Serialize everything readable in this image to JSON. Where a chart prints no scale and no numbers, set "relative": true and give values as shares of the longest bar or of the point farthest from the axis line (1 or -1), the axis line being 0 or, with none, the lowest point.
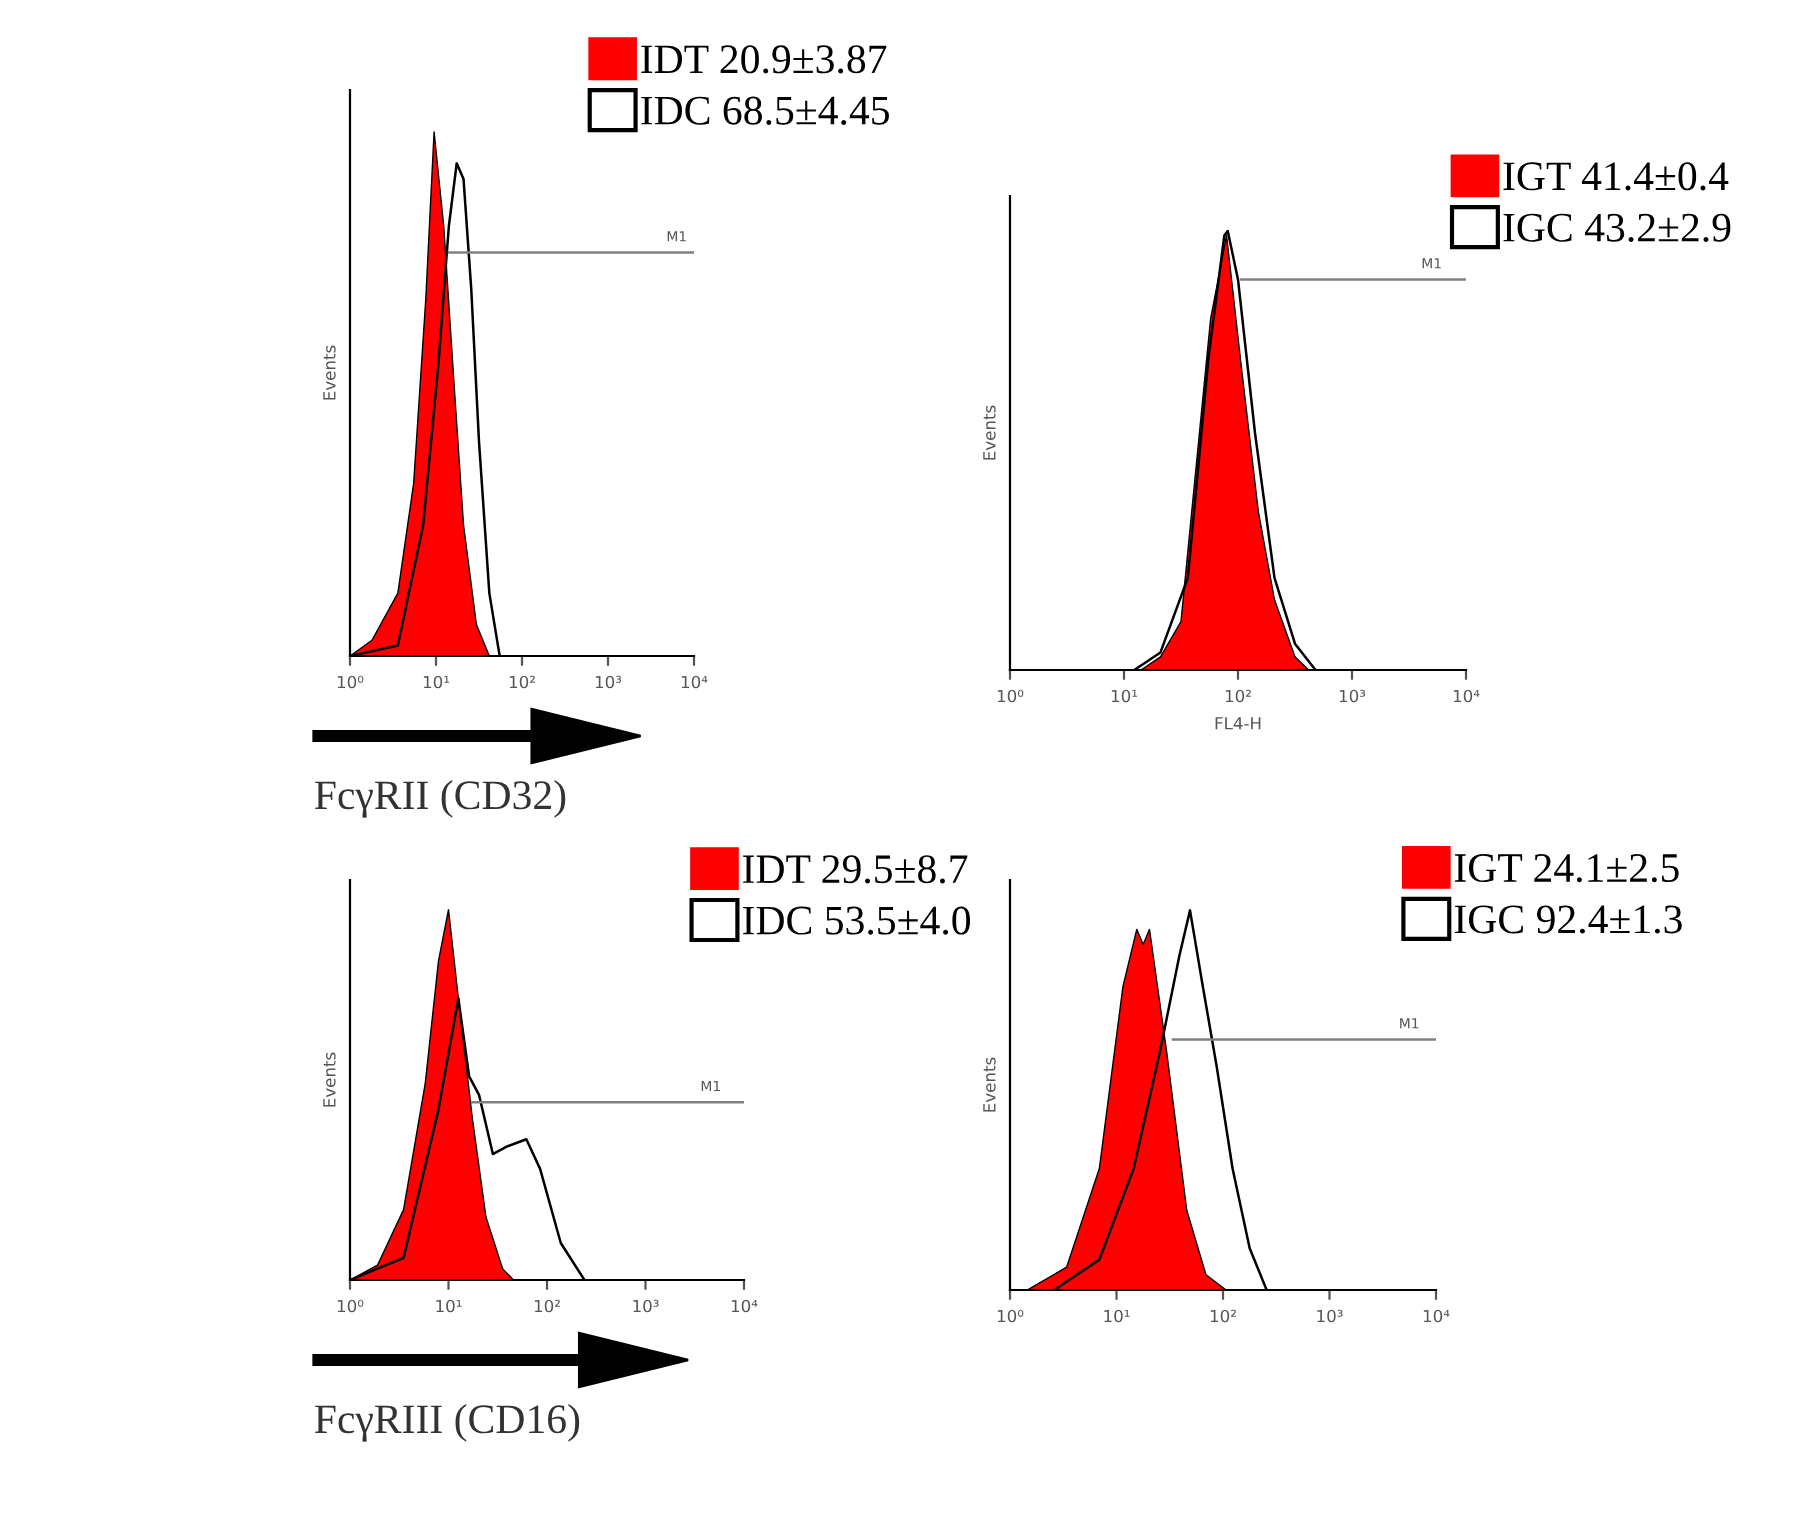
{
  "chart_data": [
    {
      "type": "area",
      "relative": true,
      "log": "x",
      "xlim": [
        1,
        10000
      ],
      "xticks": [
        {
          "value": 1,
          "label": "10⁰"
        },
        {
          "value": 10,
          "label": "10¹"
        },
        {
          "value": 100,
          "label": "10²"
        },
        {
          "value": 1000,
          "label": "10³"
        },
        {
          "value": 10000,
          "label": "10⁴"
        }
      ],
      "ylabel": "Events",
      "legend": "top right",
      "grid": false,
      "series": [
        {
          "name": "IDT 20.9±3.87",
          "color": "#ff0000",
          "x": [
            1,
            1.8,
            3.6,
            5.5,
            7.6,
            9.5,
            12.3,
            16.2,
            20.9,
            29.5,
            41.7
          ],
          "values": [
            0,
            0.03,
            0.12,
            0.33,
            0.68,
            1,
            0.82,
            0.52,
            0.25,
            0.06,
            0
          ]
        },
        {
          "name": "IDC 68.5±4.45",
          "type": "line",
          "color": "#000000",
          "x": [
            1,
            3.6,
            7.1,
            10.7,
            14.1,
            17.4,
            20.9,
            25.7,
            31.6,
            41.7,
            55
          ],
          "values": [
            0,
            0.02,
            0.25,
            0.56,
            0.82,
            0.94,
            0.91,
            0.7,
            0.41,
            0.12,
            0
          ]
        },
        {
          "type": "line",
          "color": "#808080",
          "x": [
            14.1,
            10000
          ],
          "values": [
            0.77,
            0.77
          ]
        }
      ],
      "annotations": [
        {
          "text": "M1",
          "x": 6300,
          "y": 0.77
        },
        "FcγRII (CD32)"
      ]
    },
    {
      "type": "area",
      "relative": true,
      "log": "x",
      "xlim": [
        1,
        10000
      ],
      "xticks": [
        {
          "value": 1,
          "label": "10⁰"
        },
        {
          "value": 10,
          "label": "10¹"
        },
        {
          "value": 100,
          "label": "10²"
        },
        {
          "value": 1000,
          "label": "10³"
        },
        {
          "value": 10000,
          "label": "10⁴"
        }
      ],
      "ylabel": "Events",
      "xlabel": "FL4-H",
      "legend": "top right",
      "grid": false,
      "series": [
        {
          "name": "IGT 41.4±0.4",
          "color": "#ff0000",
          "x": [
            14.1,
            20.9,
            31.6,
            41.7,
            57.5,
            79.4,
            107,
            151,
            209,
            316,
            417
          ],
          "values": [
            0,
            0.03,
            0.11,
            0.43,
            0.8,
            0.99,
            0.69,
            0.36,
            0.16,
            0.03,
            0
          ]
        },
        {
          "name": "IGC 43.2±2.9",
          "type": "line",
          "color": "#000000",
          "x": [
            12.3,
            20.9,
            36.3,
            55,
            75.9,
            81.3,
            100,
            141,
            209,
            316,
            479
          ],
          "values": [
            0,
            0.04,
            0.21,
            0.71,
            0.99,
            1,
            0.89,
            0.54,
            0.21,
            0.06,
            0
          ]
        },
        {
          "type": "line",
          "color": "#808080",
          "x": [
            107,
            10000
          ],
          "values": [
            0.89,
            0.89
          ]
        }
      ],
      "annotations": [
        {
          "text": "M1",
          "x": 5000,
          "y": 0.89
        }
      ]
    },
    {
      "type": "area",
      "relative": true,
      "log": "x",
      "xlim": [
        1,
        10000
      ],
      "xticks": [
        {
          "value": 1,
          "label": "10⁰"
        },
        {
          "value": 10,
          "label": "10¹"
        },
        {
          "value": 100,
          "label": "10²"
        },
        {
          "value": 1000,
          "label": "10³"
        },
        {
          "value": 10000,
          "label": "10⁴"
        }
      ],
      "ylabel": "Events",
      "legend": "top right",
      "grid": false,
      "series": [
        {
          "name": "IDT 29.5±8.7",
          "color": "#ff0000",
          "x": [
            1,
            1.9,
            3.5,
            5.8,
            7.9,
            10,
            12.6,
            17.4,
            24,
            35.5,
            45.7
          ],
          "values": [
            0,
            0.04,
            0.19,
            0.53,
            0.86,
            1,
            0.76,
            0.44,
            0.17,
            0.03,
            0
          ]
        },
        {
          "name": "IDC 53.5±4.0",
          "type": "line",
          "color": "#000000",
          "x": [
            1,
            3.5,
            7.9,
            12.6,
            16.2,
            20.4,
            28.2,
            38.9,
            61.7,
            85.1,
            138,
            240
          ],
          "values": [
            0,
            0.06,
            0.46,
            0.76,
            0.55,
            0.5,
            0.34,
            0.36,
            0.38,
            0.3,
            0.1,
            0
          ]
        },
        {
          "type": "line",
          "color": "#808080",
          "x": [
            17.4,
            10000
          ],
          "values": [
            0.48,
            0.48
          ]
        }
      ],
      "annotations": [
        {
          "text": "M1",
          "x": 4600,
          "y": 0.48
        },
        "FcγRIII (CD16)"
      ]
    },
    {
      "type": "area",
      "relative": true,
      "log": "x",
      "xlim": [
        1,
        10000
      ],
      "xticks": [
        {
          "value": 1,
          "label": "10⁰"
        },
        {
          "value": 10,
          "label": "10¹"
        },
        {
          "value": 100,
          "label": "10²"
        },
        {
          "value": 1000,
          "label": "10³"
        },
        {
          "value": 10000,
          "label": "10⁴"
        }
      ],
      "ylabel": "Events",
      "legend": "top right",
      "grid": false,
      "series": [
        {
          "name": "IGT 24.1±2.5",
          "color": "#ff0000",
          "x": [
            1.45,
            3.4,
            6.9,
            11.5,
            15.5,
            17.8,
            20.4,
            29.5,
            45.7,
            69.2,
            107
          ],
          "values": [
            0,
            0.06,
            0.32,
            0.8,
            0.95,
            0.91,
            0.95,
            0.63,
            0.21,
            0.04,
            0
          ]
        },
        {
          "name": "IGC 92.4±1.3",
          "type": "line",
          "color": "#000000",
          "x": [
            2.6,
            6.9,
            14.5,
            25.7,
            38.9,
            49,
            64.6,
            87.1,
            123,
            178,
            257
          ],
          "values": [
            0,
            0.08,
            0.32,
            0.63,
            0.88,
            1,
            0.8,
            0.59,
            0.32,
            0.11,
            0
          ]
        },
        {
          "type": "line",
          "color": "#808080",
          "x": [
            33.9,
            10000
          ],
          "values": [
            0.66,
            0.66
          ]
        }
      ],
      "annotations": [
        {
          "text": "M1",
          "x": 5600,
          "y": 0.66
        }
      ]
    }
  ]
}
